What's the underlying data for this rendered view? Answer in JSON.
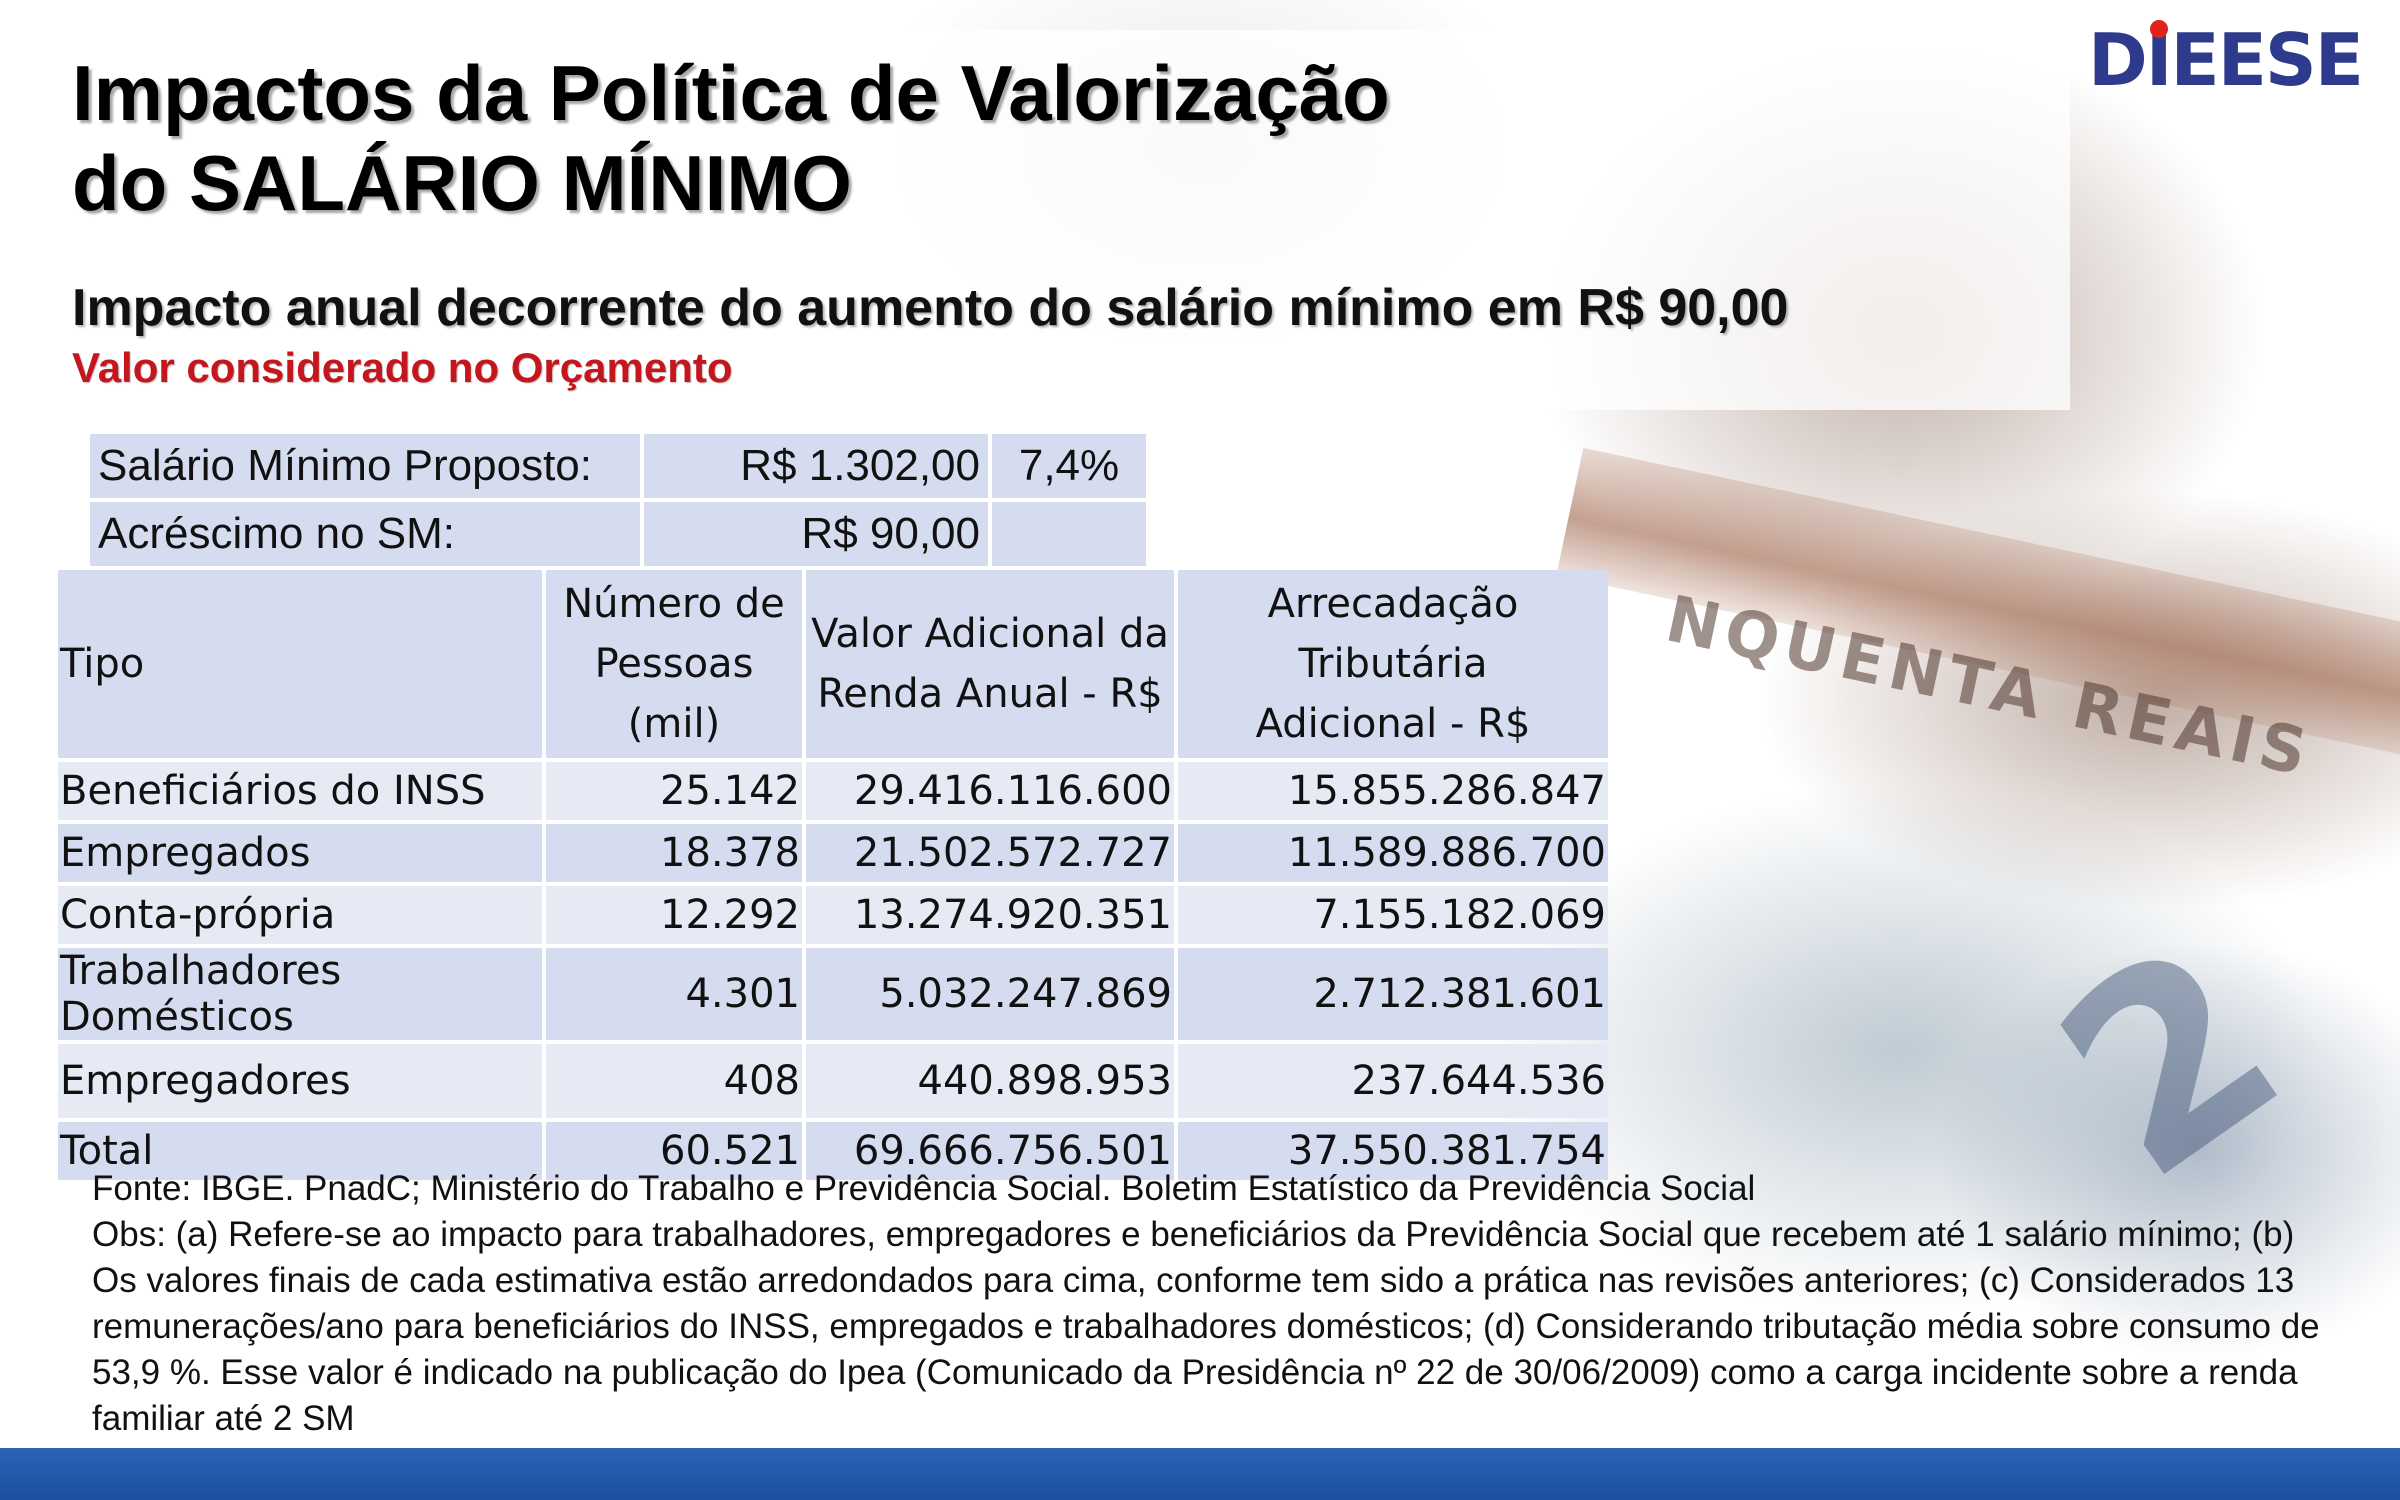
{
  "title_line1": "Impactos da Política de Valorização",
  "title_line2": "do SALÁRIO MÍNIMO",
  "subtitle": "Impacto anual decorrente do aumento do salário mínimo em R$ 90,00",
  "subtitle_red": "Valor considerado no Orçamento",
  "logo": "DIEESE",
  "proposal": {
    "row1_label": "Salário Mínimo Proposto:",
    "row1_value": "R$ 1.302,00",
    "row1_pct": "7,4%",
    "row2_label": "Acréscimo no SM:",
    "row2_value": "R$ 90,00"
  },
  "table": {
    "headers": {
      "tipo": "Tipo",
      "pessoas_l1": "Número de",
      "pessoas_l2": "Pessoas (mil)",
      "valor_l1": "Valor Adicional da",
      "valor_l2": "Renda Anual - R$",
      "arrec_l1": "Arrecadação Tributária",
      "arrec_l2": "Adicional - R$"
    },
    "rows": [
      {
        "tipo": "Beneficiários do INSS",
        "pessoas": "25.142",
        "valor": "29.416.116.600",
        "arrec": "15.855.286.847"
      },
      {
        "tipo": "Empregados",
        "pessoas": "18.378",
        "valor": "21.502.572.727",
        "arrec": "11.589.886.700"
      },
      {
        "tipo": "Conta-própria",
        "pessoas": "12.292",
        "valor": "13.274.920.351",
        "arrec": "7.155.182.069"
      },
      {
        "tipo": "Trabalhadores Domésticos",
        "pessoas": "4.301",
        "valor": "5.032.247.869",
        "arrec": "2.712.381.601"
      },
      {
        "tipo": "Empregadores",
        "pessoas": "408",
        "valor": "440.898.953",
        "arrec": "237.644.536"
      },
      {
        "tipo": "Total",
        "pessoas": "60.521",
        "valor": "69.666.756.501",
        "arrec": "37.550.381.754"
      }
    ]
  },
  "notes": {
    "fonte": "Fonte: IBGE. PnadC; Ministério do Trabalho e Previdência Social. Boletim Estatístico da Previdência Social",
    "obs": "Obs: (a) Refere-se ao impacto para trabalhadores, empregadores e beneficiários da Previdência Social que recebem até 1 salário mínimo; (b) Os valores finais de cada estimativa estão arredondados para cima, conforme tem sido a prática nas revisões anteriores; (c) Considerados 13 remunerações/ano para beneficiários do INSS, empregados e trabalhadores domésticos; (d) Considerando tributação média sobre consumo de 53,9 %. Esse valor é indicado na publicação do Ipea (Comunicado da Presidência nº 22 de 30/06/2009) como a carga incidente sobre a renda familiar até 2 SM"
  },
  "background": {
    "banknote_text": "NQUENTA REAIS",
    "banknote_numeral": "2"
  },
  "colors": {
    "table_header": "#d5dcef",
    "table_row_light": "#e6eaf5",
    "subtitle_red": "#c4161c",
    "logo_blue": "#2e3a8c",
    "footer_blue": "#2b63b8"
  }
}
